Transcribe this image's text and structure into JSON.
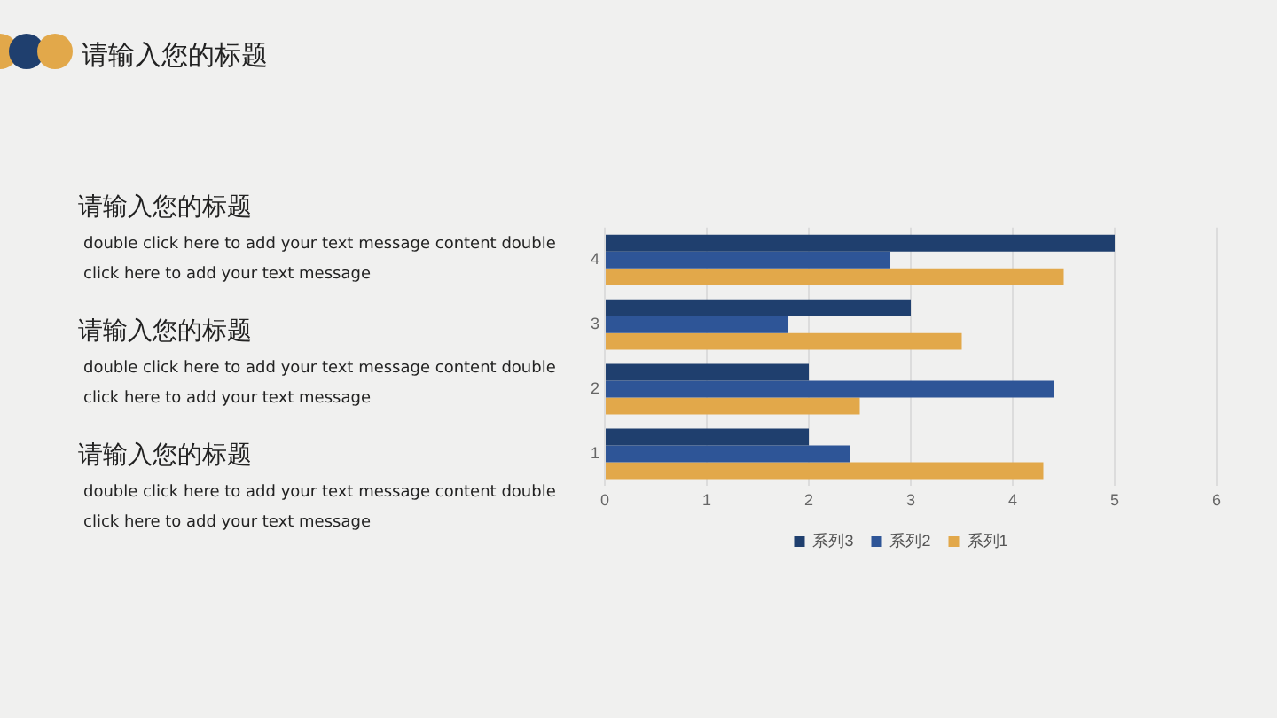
{
  "chart_data": {
    "type": "bar",
    "orientation": "horizontal",
    "title": "请输入您的标题",
    "annotations": [
      "请输入您的标题",
      "double click here to add your text message content double click here to add your text message",
      "请输入您的标题",
      "double click here to add your text message content double click here to add your text message",
      "请输入您的标题",
      "double click here to add your text message content double click here to add your text message"
    ],
    "categories": [
      "4",
      "3",
      "2",
      "1"
    ],
    "series": [
      {
        "name": "系列3",
        "color": "#1f3f6e",
        "values": [
          5,
          3,
          2,
          2
        ]
      },
      {
        "name": "系列2",
        "color": "#2e5597",
        "values": [
          2.8,
          1.8,
          4.4,
          2.4
        ]
      },
      {
        "name": "系列1",
        "color": "#e2a84a",
        "values": [
          4.5,
          3.5,
          2.5,
          4.3
        ]
      }
    ],
    "xlim": [
      0,
      6
    ],
    "xticks": [
      0,
      1,
      2,
      3,
      4,
      5,
      6
    ],
    "grid": "x",
    "legend": "bottom"
  }
}
